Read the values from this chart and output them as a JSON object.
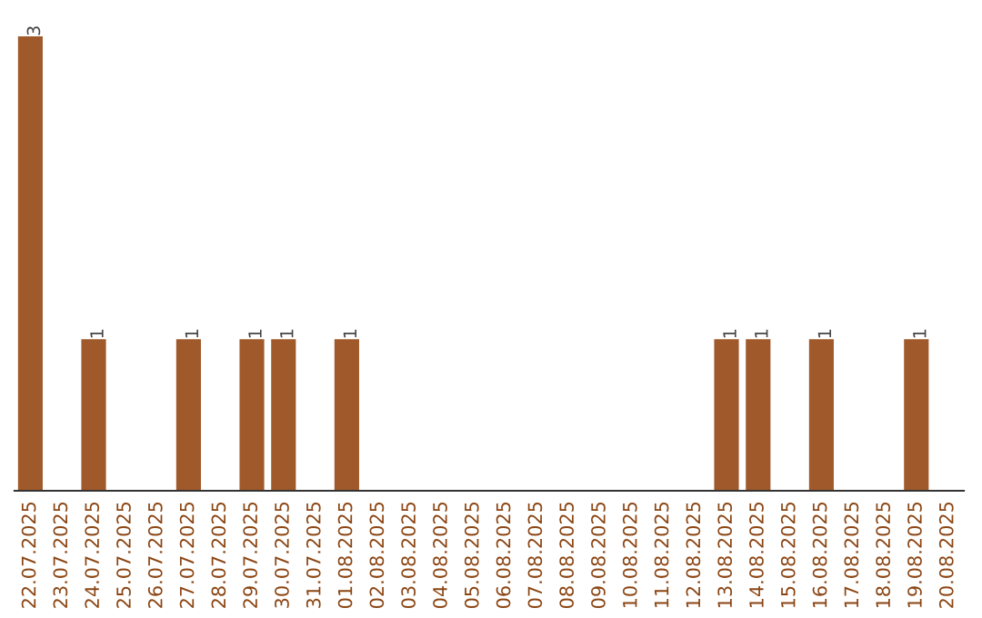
{
  "chart_data": {
    "type": "bar",
    "categories": [
      "22.07.2025",
      "23.07.2025",
      "24.07.2025",
      "25.07.2025",
      "26.07.2025",
      "27.07.2025",
      "28.07.2025",
      "29.07.2025",
      "30.07.2025",
      "31.07.2025",
      "01.08.2025",
      "02.08.2025",
      "03.08.2025",
      "04.08.2025",
      "05.08.2025",
      "06.08.2025",
      "07.08.2025",
      "08.08.2025",
      "09.08.2025",
      "10.08.2025",
      "11.08.2025",
      "12.08.2025",
      "13.08.2025",
      "14.08.2025",
      "15.08.2025",
      "16.08.2025",
      "17.08.2025",
      "18.08.2025",
      "19.08.2025",
      "20.08.2025"
    ],
    "values": [
      3,
      0,
      1,
      0,
      0,
      1,
      0,
      1,
      1,
      0,
      1,
      0,
      0,
      0,
      0,
      0,
      0,
      0,
      0,
      0,
      0,
      0,
      1,
      1,
      0,
      1,
      0,
      0,
      1,
      0
    ],
    "value_labels": [
      "3",
      null,
      "1",
      null,
      null,
      "1",
      null,
      "1",
      "1",
      null,
      "1",
      null,
      null,
      null,
      null,
      null,
      null,
      null,
      null,
      null,
      null,
      null,
      "1",
      "1",
      null,
      "1",
      null,
      null,
      "1",
      null
    ],
    "color": "#a0592b"
  }
}
